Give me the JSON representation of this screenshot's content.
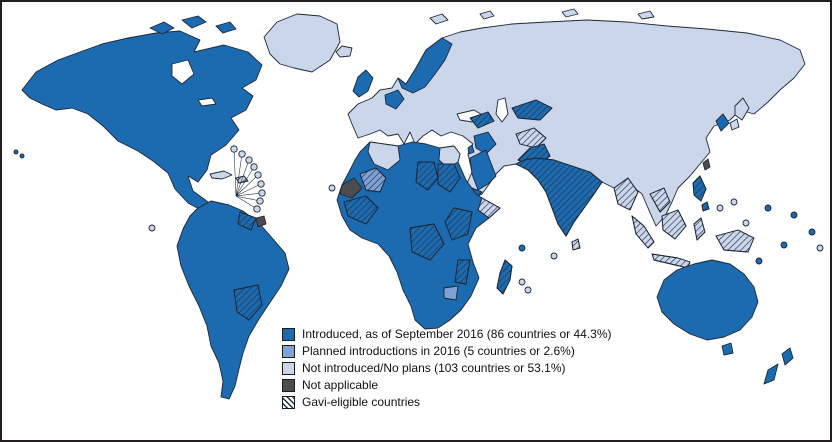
{
  "figure": {
    "kind": "choropleth-world-map",
    "background": "#FFFFFF",
    "border_color": "#231F20"
  },
  "map": {
    "outline_color": "#1D2838",
    "hatch_color": "#233044",
    "status_colors": {
      "introduced": "#1C6BB0",
      "planned": "#7EA1D6",
      "not_introduced": "#CBD6EA",
      "not_applicable": "#4D4D4F",
      "water": "#FFFFFF"
    },
    "regions": [
      {
        "id": "north-america",
        "status": "introduced"
      },
      {
        "id": "great-lakes",
        "status": "water"
      },
      {
        "id": "hudson-bay",
        "status": "water"
      },
      {
        "id": "greenland",
        "status": "not_introduced"
      },
      {
        "id": "iceland",
        "status": "not_introduced"
      },
      {
        "id": "canadian-arctic-1",
        "status": "introduced"
      },
      {
        "id": "canadian-arctic-2",
        "status": "introduced"
      },
      {
        "id": "canadian-arctic-3",
        "status": "introduced"
      },
      {
        "id": "cuba",
        "status": "not_introduced"
      },
      {
        "id": "hispaniola",
        "status": "not_introduced",
        "gavi": true
      },
      {
        "id": "south-america",
        "status": "introduced"
      },
      {
        "id": "guyana-area",
        "status": "introduced",
        "gavi": true
      },
      {
        "id": "french-guiana",
        "status": "not_applicable"
      },
      {
        "id": "bolivia-area",
        "status": "introduced",
        "gavi": true
      },
      {
        "id": "eurasia",
        "status": "not_introduced"
      },
      {
        "id": "black-sea",
        "status": "water"
      },
      {
        "id": "caspian-sea",
        "status": "water"
      },
      {
        "id": "scandinavia",
        "status": "introduced"
      },
      {
        "id": "british-isles",
        "status": "introduced"
      },
      {
        "id": "germany-area",
        "status": "introduced"
      },
      {
        "id": "svalbard",
        "status": "not_introduced"
      },
      {
        "id": "franz-josef",
        "status": "not_introduced"
      },
      {
        "id": "severnaya",
        "status": "not_introduced"
      },
      {
        "id": "new-siberian",
        "status": "not_introduced"
      },
      {
        "id": "caucasus-area",
        "status": "introduced",
        "gavi": true
      },
      {
        "id": "iraq-area",
        "status": "introduced"
      },
      {
        "id": "israel-area",
        "status": "introduced"
      },
      {
        "id": "saudi-arabia",
        "status": "introduced"
      },
      {
        "id": "yemen-area",
        "status": "introduced",
        "gavi": true
      },
      {
        "id": "uzbekistan-area",
        "status": "introduced",
        "gavi": true
      },
      {
        "id": "afghanistan-area",
        "status": "not_introduced",
        "gavi": true
      },
      {
        "id": "pakistan-area",
        "status": "introduced",
        "gavi": true
      },
      {
        "id": "india",
        "status": "introduced",
        "gavi": true
      },
      {
        "id": "myanmar-area",
        "status": "not_introduced",
        "gavi": true
      },
      {
        "id": "indochina-area",
        "status": "not_introduced",
        "gavi": true
      },
      {
        "id": "korea-area",
        "status": "introduced"
      },
      {
        "id": "japan",
        "status": "not_introduced"
      },
      {
        "id": "taiwan",
        "status": "not_applicable"
      },
      {
        "id": "philippines",
        "status": "introduced",
        "gavi": true
      },
      {
        "id": "sri-lanka",
        "status": "not_introduced",
        "gavi": true
      },
      {
        "id": "sumatra",
        "status": "not_introduced",
        "gavi": true
      },
      {
        "id": "borneo",
        "status": "not_introduced",
        "gavi": true
      },
      {
        "id": "java",
        "status": "not_introduced",
        "gavi": true
      },
      {
        "id": "sulawesi",
        "status": "not_introduced",
        "gavi": true
      },
      {
        "id": "new-guinea",
        "status": "not_introduced",
        "gavi": true
      },
      {
        "id": "africa",
        "status": "introduced"
      },
      {
        "id": "algeria",
        "status": "not_introduced"
      },
      {
        "id": "egypt",
        "status": "not_introduced"
      },
      {
        "id": "western-sahara",
        "status": "not_applicable"
      },
      {
        "id": "mali-area",
        "status": "planned",
        "gavi": true
      },
      {
        "id": "sudan-area",
        "status": "introduced",
        "gavi": true
      },
      {
        "id": "chad-area",
        "status": "introduced",
        "gavi": true
      },
      {
        "id": "west-africa-area",
        "status": "introduced",
        "gavi": true
      },
      {
        "id": "east-africa-area",
        "status": "introduced",
        "gavi": true
      },
      {
        "id": "drc-area",
        "status": "introduced",
        "gavi": true
      },
      {
        "id": "mozambique-area",
        "status": "introduced",
        "gavi": true
      },
      {
        "id": "somalia",
        "status": "not_introduced",
        "gavi": true
      },
      {
        "id": "zimbabwe-area",
        "status": "planned"
      },
      {
        "id": "madagascar",
        "status": "introduced",
        "gavi": true
      },
      {
        "id": "australia",
        "status": "introduced"
      },
      {
        "id": "tasmania",
        "status": "introduced"
      },
      {
        "id": "new-zealand",
        "status": "introduced"
      },
      {
        "id": "carib-1",
        "status": "not_introduced"
      },
      {
        "id": "carib-2",
        "status": "not_introduced"
      },
      {
        "id": "carib-3",
        "status": "not_introduced"
      },
      {
        "id": "carib-4",
        "status": "not_introduced"
      },
      {
        "id": "carib-5",
        "status": "not_introduced"
      },
      {
        "id": "carib-6",
        "status": "not_introduced"
      },
      {
        "id": "carib-7",
        "status": "not_introduced"
      },
      {
        "id": "carib-8",
        "status": "not_introduced"
      },
      {
        "id": "carib-9",
        "status": "not_introduced"
      },
      {
        "id": "cape-verde",
        "status": "not_introduced"
      },
      {
        "id": "galapagos",
        "status": "not_introduced"
      },
      {
        "id": "maldives",
        "status": "not_introduced"
      },
      {
        "id": "io-1",
        "status": "introduced"
      },
      {
        "id": "io-2",
        "status": "not_introduced"
      },
      {
        "id": "io-3",
        "status": "not_introduced"
      },
      {
        "id": "pac-1",
        "status": "introduced"
      },
      {
        "id": "pac-2",
        "status": "introduced"
      },
      {
        "id": "pac-3",
        "status": "introduced"
      },
      {
        "id": "pac-4",
        "status": "introduced"
      },
      {
        "id": "pac-5",
        "status": "introduced"
      },
      {
        "id": "pac-6",
        "status": "not_introduced"
      },
      {
        "id": "pac-7",
        "status": "not_introduced"
      },
      {
        "id": "pac-8",
        "status": "not_introduced"
      },
      {
        "id": "pac-9",
        "status": "not_introduced"
      },
      {
        "id": "hawaii-1",
        "status": "introduced"
      },
      {
        "id": "hawaii-2",
        "status": "introduced"
      }
    ]
  },
  "legend": {
    "items": [
      {
        "label": "Introduced, as of September 2016 (86 countries or 44.3%)",
        "status": "introduced",
        "pattern": "solid"
      },
      {
        "label": "Planned introductions in 2016 (5 countries or 2.6%)",
        "status": "planned",
        "pattern": "solid"
      },
      {
        "label": "Not introduced/No plans (103 countries or 53.1%)",
        "status": "not_introduced",
        "pattern": "solid"
      },
      {
        "label": "Not applicable",
        "status": "not_applicable",
        "pattern": "solid"
      },
      {
        "label": "Gavi-eligible countries",
        "pattern": "hatched"
      }
    ]
  }
}
